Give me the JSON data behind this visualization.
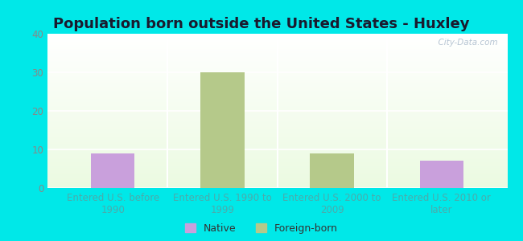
{
  "title": "Population born outside the United States - Huxley",
  "categories": [
    "Entered U.S. before\n1990",
    "Entered U.S. 1990 to\n1999",
    "Entered U.S. 2000 to\n2009",
    "Entered U.S. 2010 or\nlater"
  ],
  "native_values": [
    9,
    0,
    0,
    7
  ],
  "foreign_values": [
    0,
    30,
    9,
    0
  ],
  "native_color": "#c9a0dc",
  "foreign_color": "#b5c98a",
  "background_outer": "#00e8e8",
  "ylim": [
    0,
    40
  ],
  "yticks": [
    0,
    10,
    20,
    30,
    40
  ],
  "bar_width": 0.4,
  "title_fontsize": 13,
  "tick_label_fontsize": 8.5,
  "legend_fontsize": 9,
  "watermark": "  City-Data.com",
  "xtick_color": "#4aacac",
  "ytick_color": "#888888"
}
